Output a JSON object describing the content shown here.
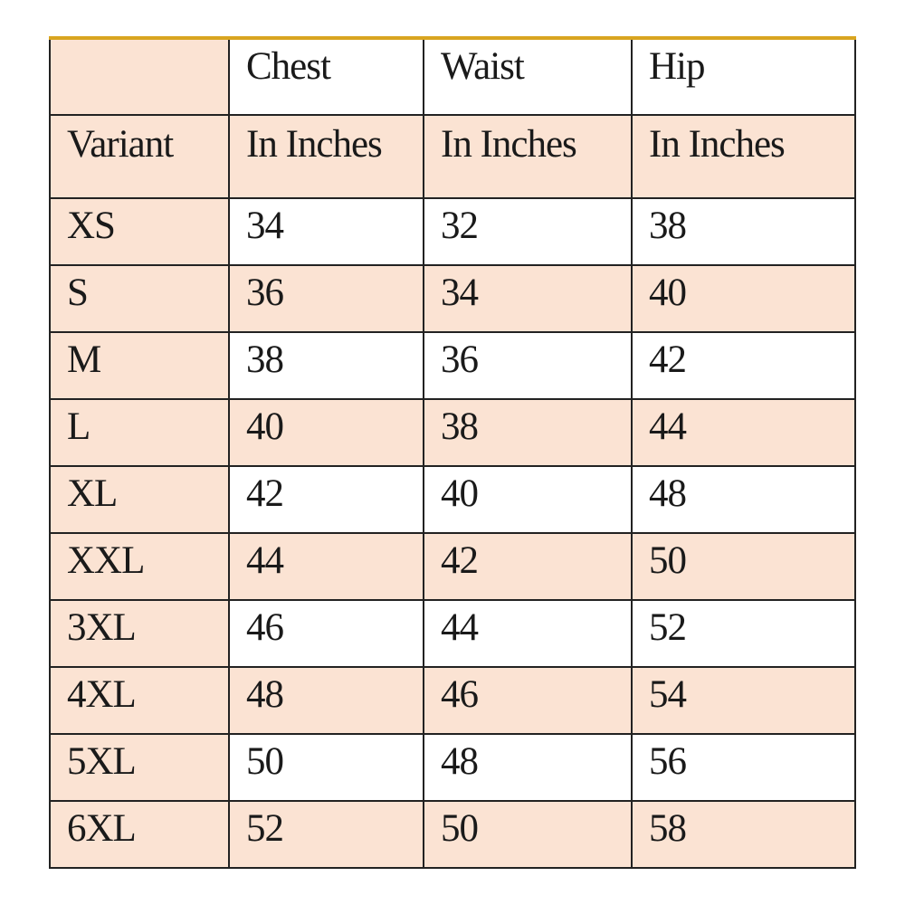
{
  "colors": {
    "peach": "#fbe3d3",
    "top_border": "#d9a520"
  },
  "header": {
    "row1": [
      "",
      "Chest",
      "Waist",
      "Hip"
    ],
    "row2": [
      "Variant",
      "In Inches",
      "In Inches",
      "In Inches"
    ]
  },
  "rows": [
    [
      "XS",
      "34",
      "32",
      "38"
    ],
    [
      "S",
      "36",
      "34",
      "40"
    ],
    [
      "M",
      "38",
      "36",
      "42"
    ],
    [
      "L",
      "40",
      "38",
      "44"
    ],
    [
      "XL",
      "42",
      "40",
      "48"
    ],
    [
      "XXL",
      "44",
      "42",
      "50"
    ],
    [
      "3XL",
      "46",
      "44",
      "52"
    ],
    [
      "4XL",
      "48",
      "46",
      "54"
    ],
    [
      "5XL",
      "50",
      "48",
      "56"
    ],
    [
      "6XL",
      "52",
      "50",
      "58"
    ]
  ]
}
